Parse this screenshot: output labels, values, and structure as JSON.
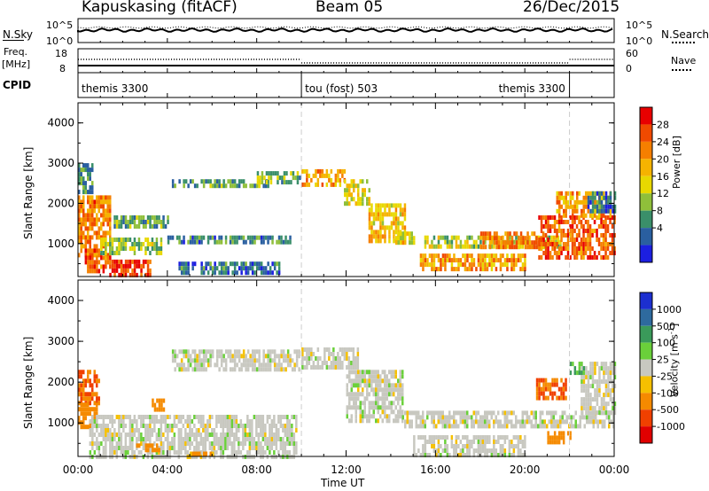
{
  "header": {
    "station": "Kapuskasing (fitACF)",
    "beam": "Beam 05",
    "date": "26/Dec/2015"
  },
  "noise_panel": {
    "left_label": "N.Sky",
    "left_ticks": [
      "10^5",
      "10^0"
    ],
    "right_ticks": [
      "10^5",
      "10^0"
    ],
    "right_label": "N.Search"
  },
  "freq_panel": {
    "left_label_top": "Freq.",
    "left_label_unit": "[MHz]",
    "left_ticks": [
      "18",
      "8"
    ],
    "right_ticks": [
      "60",
      "0"
    ],
    "right_label": "Nave"
  },
  "cpid_panel": {
    "label": "CPID",
    "segments": [
      {
        "name": "themis 3300",
        "start_hour": 0,
        "end_hour": 10
      },
      {
        "name": "tou (fost) 503",
        "start_hour": 10,
        "end_hour": 22
      },
      {
        "name": "themis 3300",
        "start_hour": 22,
        "end_hour": 24
      }
    ]
  },
  "axes": {
    "xlabel": "Time UT",
    "ylabel": "Slant Range [km]",
    "x_ticks": [
      "00:00",
      "04:00",
      "08:00",
      "12:00",
      "16:00",
      "20:00",
      "00:00"
    ],
    "y_ticks": [
      "1000",
      "2000",
      "3000",
      "4000"
    ]
  },
  "power_colorbar": {
    "label": "Power [dB]",
    "ticks": [
      "28",
      "24",
      "20",
      "16",
      "12",
      "8",
      "4"
    ],
    "colors": [
      "#e80000",
      "#f04a00",
      "#f57f00",
      "#f5b300",
      "#e8d800",
      "#8fbf3a",
      "#3a8f6a",
      "#2a5fa0",
      "#1c1fe0"
    ]
  },
  "velocity_colorbar": {
    "label": "Velocity [m s^-1]",
    "ticks": [
      "1000",
      "500",
      "100",
      "25",
      "-25",
      "-100",
      "-500",
      "-1000"
    ],
    "colors": [
      "#1c2fd0",
      "#2e6a9e",
      "#3a9a5a",
      "#6ad03a",
      "#c8c8c0",
      "#f5c000",
      "#f58a00",
      "#f04000",
      "#e00000"
    ]
  },
  "chart_data": [
    {
      "type": "heatmap",
      "title": "Power",
      "xlabel": "Time UT",
      "ylabel": "Slant Range [km]",
      "xlim": [
        0,
        24
      ],
      "ylim": [
        180,
        4500
      ],
      "value_range": [
        0,
        30
      ],
      "value_label": "Power [dB]",
      "regions": [
        {
          "t0": 0.0,
          "t1": 1.4,
          "r0": 700,
          "r1": 2200,
          "v": 22
        },
        {
          "t0": 0.0,
          "t1": 0.6,
          "r0": 2300,
          "r1": 3000,
          "v": 8
        },
        {
          "t0": 1.0,
          "t1": 3.7,
          "r0": 800,
          "r1": 1150,
          "v": 12
        },
        {
          "t0": 0.3,
          "t1": 1.4,
          "r0": 300,
          "r1": 700,
          "v": 24
        },
        {
          "t0": 1.4,
          "t1": 3.2,
          "r0": 200,
          "r1": 600,
          "v": 27
        },
        {
          "t0": 1.5,
          "t1": 4.0,
          "r0": 1400,
          "r1": 1700,
          "v": 10
        },
        {
          "t0": 4.0,
          "t1": 9.5,
          "r0": 1000,
          "r1": 1200,
          "v": 8
        },
        {
          "t0": 4.5,
          "t1": 9.0,
          "r0": 300,
          "r1": 550,
          "v": 6
        },
        {
          "t0": 4.2,
          "t1": 8.5,
          "r0": 2400,
          "r1": 2600,
          "v": 9
        },
        {
          "t0": 8.0,
          "t1": 9.9,
          "r0": 2500,
          "r1": 2800,
          "v": 11
        },
        {
          "t0": 10.0,
          "t1": 11.9,
          "r0": 2450,
          "r1": 2850,
          "v": 20
        },
        {
          "t0": 11.9,
          "t1": 13.0,
          "r0": 2000,
          "r1": 2600,
          "v": 15
        },
        {
          "t0": 13.0,
          "t1": 14.6,
          "r0": 1100,
          "r1": 2000,
          "v": 18
        },
        {
          "t0": 14.2,
          "t1": 15.0,
          "r0": 1000,
          "r1": 1300,
          "v": 16
        },
        {
          "t0": 15.5,
          "t1": 21.6,
          "r0": 900,
          "r1": 1200,
          "v": 14
        },
        {
          "t0": 15.3,
          "t1": 20.0,
          "r0": 350,
          "r1": 750,
          "v": 20
        },
        {
          "t0": 18.0,
          "t1": 20.8,
          "r0": 900,
          "r1": 1300,
          "v": 21
        },
        {
          "t0": 20.6,
          "t1": 24.0,
          "r0": 700,
          "r1": 1700,
          "v": 24
        },
        {
          "t0": 21.4,
          "t1": 23.8,
          "r0": 1700,
          "r1": 2300,
          "v": 20
        },
        {
          "t0": 22.8,
          "t1": 24.0,
          "r0": 1800,
          "r1": 2300,
          "v": 6
        }
      ]
    },
    {
      "type": "heatmap",
      "title": "Velocity",
      "xlabel": "Time UT",
      "ylabel": "Slant Range [km]",
      "xlim": [
        0,
        24
      ],
      "ylim": [
        180,
        4500
      ],
      "value_range": [
        -1000,
        1000
      ],
      "value_label": "Velocity [m s^-1]",
      "regions": [
        {
          "t0": 0.0,
          "t1": 0.9,
          "r0": 1500,
          "r1": 2300,
          "v": -500
        },
        {
          "t0": 0.0,
          "t1": 0.8,
          "r0": 900,
          "r1": 1500,
          "v": -300
        },
        {
          "t0": 0.5,
          "t1": 9.8,
          "r0": 200,
          "r1": 1200,
          "v": 0
        },
        {
          "t0": 2.6,
          "t1": 3.6,
          "r0": 300,
          "r1": 500,
          "v": -150
        },
        {
          "t0": 3.3,
          "t1": 3.8,
          "r0": 1300,
          "r1": 1600,
          "v": -200
        },
        {
          "t0": 5.0,
          "t1": 6.0,
          "r0": 200,
          "r1": 300,
          "v": -120
        },
        {
          "t0": 4.2,
          "t1": 9.9,
          "r0": 2300,
          "r1": 2800,
          "v": 0
        },
        {
          "t0": 10.0,
          "t1": 12.5,
          "r0": 2400,
          "r1": 2850,
          "v": 0
        },
        {
          "t0": 12.0,
          "t1": 14.5,
          "r0": 1100,
          "r1": 2300,
          "v": 0
        },
        {
          "t0": 14.5,
          "t1": 24.0,
          "r0": 900,
          "r1": 1300,
          "v": 0
        },
        {
          "t0": 15.0,
          "t1": 20.0,
          "r0": 200,
          "r1": 700,
          "v": 0
        },
        {
          "t0": 20.5,
          "t1": 21.8,
          "r0": 1600,
          "r1": 2100,
          "v": -500
        },
        {
          "t0": 21.0,
          "t1": 22.0,
          "r0": 500,
          "r1": 800,
          "v": -300
        },
        {
          "t0": 22.5,
          "t1": 24.0,
          "r0": 1300,
          "r1": 2500,
          "v": 0
        },
        {
          "t0": 22.0,
          "t1": 22.6,
          "r0": 2200,
          "r1": 2500,
          "v": 100
        }
      ]
    }
  ]
}
